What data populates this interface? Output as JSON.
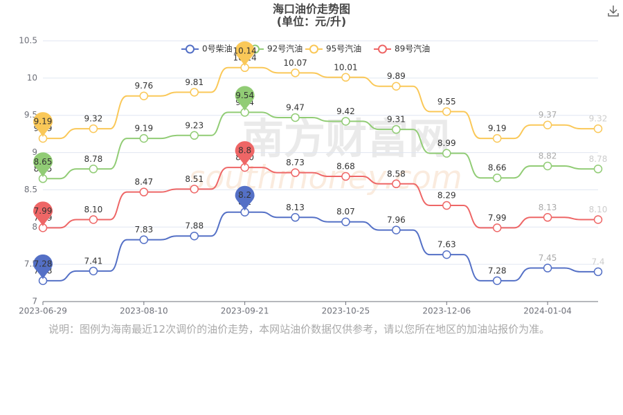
{
  "chart_data": {
    "type": "line",
    "title": "海口油价走势图",
    "subtitle": "(单位：元/升)",
    "watermark": [
      "南方财富网",
      "southmoney.com"
    ],
    "categories": [
      "2023-06-29",
      null,
      "2023-08-10",
      null,
      "2023-09-21",
      null,
      "2023-10-25",
      null,
      "2023-12-06",
      null,
      "2024-01-04",
      null
    ],
    "series": [
      {
        "name": "0号柴油",
        "color": "#5470c6",
        "values": [
          7.28,
          7.41,
          7.83,
          7.88,
          8.2,
          8.13,
          8.07,
          7.96,
          7.63,
          7.28,
          7.45,
          7.4
        ],
        "value_labels": [
          "7.28",
          "7.41",
          "7.83",
          "7.88",
          "8.2",
          "8.13",
          "8.07",
          "7.96",
          "7.63",
          "7.28",
          "7.45",
          "7.4"
        ],
        "pins": {
          "max": "8.2",
          "min": "7.28"
        }
      },
      {
        "name": "92号汽油",
        "color": "#91cc75",
        "values": [
          8.65,
          8.78,
          9.19,
          9.23,
          9.54,
          9.47,
          9.42,
          9.31,
          8.99,
          8.66,
          8.82,
          8.78
        ],
        "value_labels": [
          "8.65",
          "8.78",
          "9.19",
          "9.23",
          "9.54",
          "9.47",
          "9.42",
          "9.31",
          "8.99",
          "8.66",
          "8.82",
          "8.78"
        ],
        "pins": {
          "max": "9.54",
          "min": "8.65"
        }
      },
      {
        "name": "95号汽油",
        "color": "#fac858",
        "values": [
          9.19,
          9.32,
          9.76,
          9.81,
          10.14,
          10.07,
          10.01,
          9.89,
          9.55,
          9.19,
          9.37,
          9.32
        ],
        "value_labels": [
          "9.19",
          "9.32",
          "9.76",
          "9.81",
          "10.14",
          "10.07",
          "10.01",
          "9.89",
          "9.55",
          "9.19",
          "9.37",
          "9.32"
        ],
        "pins": {
          "max": "10.14",
          "min": "9.19"
        }
      },
      {
        "name": "89号汽油",
        "color": "#ee6666",
        "values": [
          7.99,
          8.1,
          8.47,
          8.51,
          8.8,
          8.73,
          8.68,
          8.58,
          8.29,
          7.99,
          8.13,
          8.1
        ],
        "value_labels": [
          "7.99",
          "8.10",
          "8.47",
          "8.51",
          "8.80",
          "8.73",
          "8.68",
          "8.58",
          "8.29",
          "7.99",
          "8.13",
          "8.10"
        ],
        "pins": {
          "max": "8.8",
          "min": "7.99"
        }
      }
    ],
    "ylim": [
      7,
      10.5
    ],
    "yticks": [
      7,
      7.5,
      8,
      8.5,
      9,
      9.5,
      10,
      10.5
    ],
    "grid": true,
    "legend": "top",
    "note": "说明：图例为海南最近12次调价的油价走势，本网站油价数据仅供参考，请以您所在地区的加油站报价为准。"
  }
}
